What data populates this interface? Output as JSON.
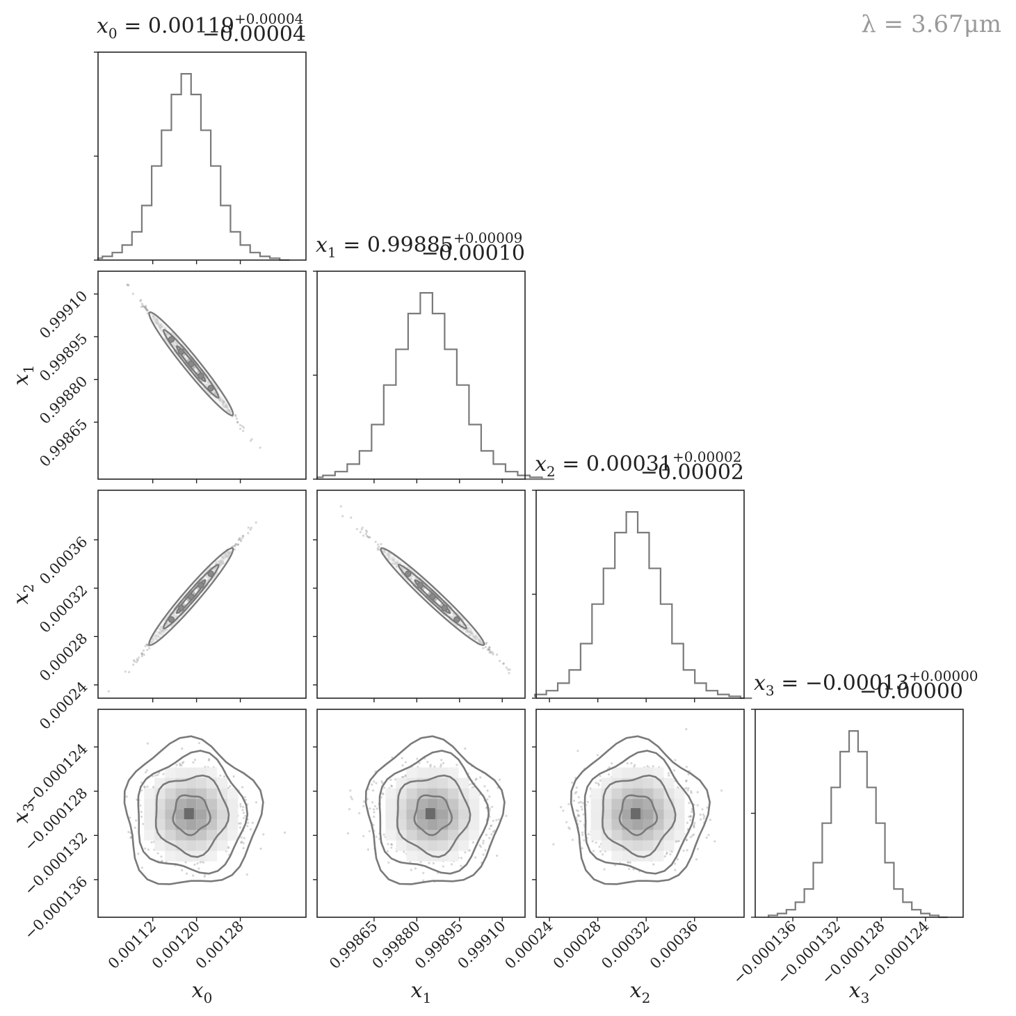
{
  "wavelength_label": "λ = 3.67μm",
  "chart_data": {
    "type": "corner",
    "parameters": [
      {
        "symbol": "x",
        "sub": "0",
        "title_value": "0.00119",
        "err_plus": "+0.00004",
        "err_minus": "−0.00004",
        "median": 0.00119,
        "sigma": 4e-05,
        "range": [
          0.00102,
          0.0014
        ],
        "ticks": [
          0.00112,
          0.0012,
          0.00128
        ],
        "tick_labels": [
          "0.00112",
          "0.00120",
          "0.00128"
        ]
      },
      {
        "symbol": "x",
        "sub": "1",
        "title_value": "0.99885",
        "err_plus": "+0.00009",
        "err_minus": "−0.00010",
        "median": 0.998855,
        "sigma": 9.5e-05,
        "range": [
          0.99845,
          0.99918
        ],
        "ticks": [
          0.99865,
          0.9988,
          0.99895,
          0.9991
        ],
        "tick_labels": [
          "0.99865",
          "0.99880",
          "0.99895",
          "0.99910"
        ]
      },
      {
        "symbol": "x",
        "sub": "2",
        "title_value": "0.00031",
        "err_plus": "+0.00002",
        "err_minus": "−0.00002",
        "median": 0.000313,
        "sigma": 2.1e-05,
        "range": [
          0.000229,
          0.000401
        ],
        "ticks": [
          0.00024,
          0.00028,
          0.00032,
          0.00036
        ],
        "tick_labels": [
          "0.00024",
          "0.00028",
          "0.00032",
          "0.00036"
        ]
      },
      {
        "symbol": "x",
        "sub": "3",
        "title_value": "−0.00013",
        "err_plus": "+0.00000",
        "err_minus": "−0.00000",
        "median": -0.0001301,
        "sigma": 1.8e-06,
        "range": [
          -0.0001394,
          -0.0001206
        ],
        "ticks": [
          -0.000136,
          -0.000132,
          -0.000128,
          -0.000124
        ],
        "tick_labels": [
          "−0.000136",
          "−0.000132",
          "−0.000128",
          "−0.000124"
        ]
      }
    ],
    "correlations": {
      "x0_x1": -0.998,
      "x0_x2": 0.996,
      "x1_x2": -0.996,
      "x0_x3": 0.0,
      "x1_x3": 0.0,
      "x2_x3": 0.0
    },
    "histogram_bins": 20,
    "histogram_counts": [
      0.01,
      0.02,
      0.04,
      0.08,
      0.15,
      0.29,
      0.5,
      0.69,
      0.88,
      0.99,
      0.88,
      0.69,
      0.5,
      0.29,
      0.15,
      0.08,
      0.04,
      0.02,
      0.01,
      0.0
    ],
    "contour_levels_sigma": [
      0.5,
      1.0,
      1.5,
      2.0
    ],
    "color": "#7a7a7a"
  }
}
